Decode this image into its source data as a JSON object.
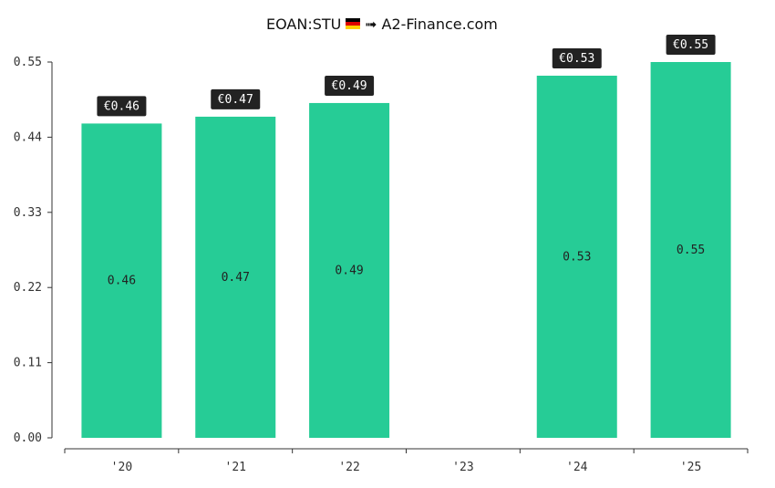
{
  "chart_data": {
    "type": "bar",
    "title": "EOAN:STU",
    "title_suffix": "➟ A2-Finance.com",
    "flag_icon": "germany-flag-icon",
    "categories": [
      "'20",
      "'21",
      "'22",
      "'23",
      "'24",
      "'25"
    ],
    "values": [
      0.46,
      0.47,
      0.49,
      null,
      0.53,
      0.55
    ],
    "inside_labels": [
      "0.46",
      "0.47",
      "0.49",
      "",
      "0.53",
      "0.55"
    ],
    "badge_labels": [
      "€0.46",
      "€0.47",
      "€0.49",
      "",
      "€0.53",
      "€0.55"
    ],
    "yticks": [
      "0.00",
      "0.11",
      "0.22",
      "0.33",
      "0.44",
      "0.55"
    ],
    "ytick_values": [
      0,
      0.11,
      0.22,
      0.33,
      0.44,
      0.55
    ],
    "ylim": [
      0,
      0.55
    ],
    "xlabel": "",
    "ylabel": "",
    "grid": false,
    "bar_color": "#26cc96",
    "badge_color": "#222222"
  }
}
